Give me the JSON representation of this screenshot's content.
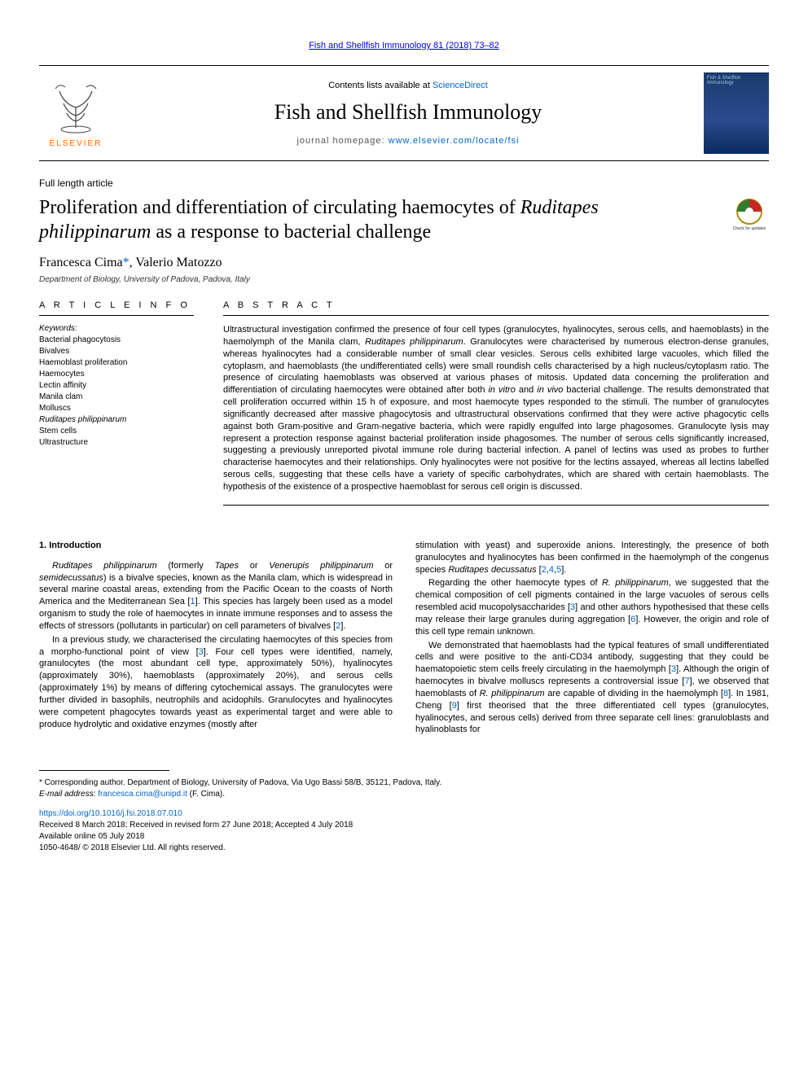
{
  "top_link": "Fish and Shellfish Immunology 81 (2018) 73–82",
  "header": {
    "contents_prefix": "Contents lists available at ",
    "contents_link": "ScienceDirect",
    "journal_title": "Fish and Shellfish Immunology",
    "homepage_prefix": "journal homepage: ",
    "homepage_link": "www.elsevier.com/locate/fsi",
    "elsevier_label": "ELSEVIER",
    "cover_text": "Fish & Shellfish Immunology"
  },
  "article": {
    "type": "Full length article",
    "title_prefix": "Proliferation and differentiation of circulating haemocytes of ",
    "title_species": "Ruditapes philippinarum",
    "title_suffix": " as a response to bacterial challenge",
    "authors_plain": "Francesca Cima",
    "authors_marker": "*",
    "authors_rest": ", Valerio Matozzo",
    "affiliation": "Department of Biology, University of Padova, Padova, Italy",
    "check_label": "Check for updates"
  },
  "info": {
    "heading": "A R T I C L E  I N F O",
    "keywords_label": "Keywords:",
    "keywords": [
      "Bacterial phagocytosis",
      "Bivalves",
      "Haemoblast proliferation",
      "Haemocytes",
      "Lectin affinity",
      "Manila clam",
      "Molluscs",
      "Ruditapes philippinarum",
      "Stem cells",
      "Ultrastructure"
    ],
    "keywords_italic_idx": 7
  },
  "abstract": {
    "heading": "A B S T R A C T",
    "text_parts": [
      "Ultrastructural investigation confirmed the presence of four cell types (granulocytes, hyalinocytes, serous cells, and haemoblasts) in the haemolymph of the Manila clam, ",
      "Ruditapes philippinarum",
      ". Granulocytes were characterised by numerous electron-dense granules, whereas hyalinocytes had a considerable number of small clear vesicles. Serous cells exhibited large vacuoles, which filled the cytoplasm, and haemoblasts (the undifferentiated cells) were small roundish cells characterised by a high nucleus/cytoplasm ratio. The presence of circulating haemoblasts was observed at various phases of mitosis. Updated data concerning the proliferation and differentiation of circulating haemocytes were obtained after both ",
      "in vitro",
      " and ",
      "in vivo",
      " bacterial challenge. The results demonstrated that cell proliferation occurred within 15 h of exposure, and most haemocyte types responded to the stimuli. The number of granulocytes significantly decreased after massive phagocytosis and ultrastructural observations confirmed that they were active phagocytic cells against both Gram-positive and Gram-negative bacteria, which were rapidly engulfed into large phagosomes. Granulocyte lysis may represent a protection response against bacterial proliferation inside phagosomes. The number of serous cells significantly increased, suggesting a previously unreported pivotal immune role during bacterial infection. A panel of lectins was used as probes to further characterise haemocytes and their relationships. Only hyalinocytes were not positive for the lectins assayed, whereas all lectins labelled serous cells, suggesting that these cells have a variety of specific carbohydrates, which are shared with certain haemoblasts. The hypothesis of the existence of a prospective haemoblast for serous cell origin is discussed."
    ]
  },
  "body": {
    "section_heading": "1. Introduction",
    "left_paras": [
      {
        "runs": [
          {
            "t": "Ruditapes philippinarum",
            "i": true
          },
          {
            "t": " (formerly ",
            "i": false
          },
          {
            "t": "Tapes",
            "i": true
          },
          {
            "t": " or ",
            "i": false
          },
          {
            "t": "Venerupis philippinarum",
            "i": true
          },
          {
            "t": " or ",
            "i": false
          },
          {
            "t": "semidecussatus",
            "i": true
          },
          {
            "t": ") is a bivalve species, known as the Manila clam, which is widespread in several marine coastal areas, extending from the Pacific Ocean to the coasts of North America and the Mediterranean Sea [",
            "i": false
          },
          {
            "t": "1",
            "ref": true
          },
          {
            "t": "]. This species has largely been used as a model organism to study the role of haemocytes in innate immune responses and to assess the effects of stressors (pollutants in particular) on cell parameters of bivalves [",
            "i": false
          },
          {
            "t": "2",
            "ref": true
          },
          {
            "t": "].",
            "i": false
          }
        ]
      },
      {
        "runs": [
          {
            "t": "In a previous study, we characterised the circulating haemocytes of this species from a morpho-functional point of view [",
            "i": false
          },
          {
            "t": "3",
            "ref": true
          },
          {
            "t": "]. Four cell types were identified, namely, granulocytes (the most abundant cell type, approximately 50%), hyalinocytes (approximately 30%), haemoblasts (approximately 20%), and serous cells (approximately 1%) by means of differing cytochemical assays. The granulocytes were further divided in basophils, neutrophils and acidophils. Granulocytes and hyalinocytes were competent phagocytes towards yeast as experimental target and were able to produce hydrolytic and oxidative enzymes (mostly after",
            "i": false
          }
        ]
      }
    ],
    "right_paras": [
      {
        "noindent": true,
        "runs": [
          {
            "t": "stimulation with yeast) and superoxide anions. Interestingly, the presence of both granulocytes and hyalinocytes has been confirmed in the haemolymph of the congenus species ",
            "i": false
          },
          {
            "t": "Ruditapes decussatus",
            "i": true
          },
          {
            "t": " [",
            "i": false
          },
          {
            "t": "2",
            "ref": true
          },
          {
            "t": ",",
            "i": false
          },
          {
            "t": "4",
            "ref": true
          },
          {
            "t": ",",
            "i": false
          },
          {
            "t": "5",
            "ref": true
          },
          {
            "t": "].",
            "i": false
          }
        ]
      },
      {
        "runs": [
          {
            "t": "Regarding the other haemocyte types of ",
            "i": false
          },
          {
            "t": "R. philippinarum",
            "i": true
          },
          {
            "t": ", we suggested that the chemical composition of cell pigments contained in the large vacuoles of serous cells resembled acid mucopolysaccharides [",
            "i": false
          },
          {
            "t": "3",
            "ref": true
          },
          {
            "t": "] and other authors hypothesised that these cells may release their large granules during aggregation [",
            "i": false
          },
          {
            "t": "6",
            "ref": true
          },
          {
            "t": "]. However, the origin and role of this cell type remain unknown.",
            "i": false
          }
        ]
      },
      {
        "runs": [
          {
            "t": "We demonstrated that haemoblasts had the typical features of small undifferentiated cells and were positive to the anti-CD34 antibody, suggesting that they could be haematopoietic stem cells freely circulating in the haemolymph [",
            "i": false
          },
          {
            "t": "3",
            "ref": true
          },
          {
            "t": "]. Although the origin of haemocytes in bivalve molluscs represents a controversial issue [",
            "i": false
          },
          {
            "t": "7",
            "ref": true
          },
          {
            "t": "], we observed that haemoblasts of ",
            "i": false
          },
          {
            "t": "R. philippinarum",
            "i": true
          },
          {
            "t": " are capable of dividing in the haemolymph [",
            "i": false
          },
          {
            "t": "8",
            "ref": true
          },
          {
            "t": "]. In 1981, Cheng [",
            "i": false
          },
          {
            "t": "9",
            "ref": true
          },
          {
            "t": "] first theorised that the three differentiated cell types (granulocytes, hyalinocytes, and serous cells) derived from three separate cell lines: granuloblasts and hyalinoblasts for",
            "i": false
          }
        ]
      }
    ]
  },
  "footer": {
    "corr_marker": "*",
    "corr_text": " Corresponding author. Department of Biology, University of Padova, Via Ugo Bassi 58/B, 35121, Padova, Italy.",
    "email_label": "E-mail address: ",
    "email": "francesca.cima@unipd.it",
    "email_suffix": " (F. Cima).",
    "doi": "https://doi.org/10.1016/j.fsi.2018.07.010",
    "received": "Received 8 March 2018; Received in revised form 27 June 2018; Accepted 4 July 2018",
    "available": "Available online 05 July 2018",
    "copyright": "1050-4648/ © 2018 Elsevier Ltd. All rights reserved."
  },
  "colors": {
    "link": "#0066cc",
    "elsevier_orange": "#ff6600",
    "cover_bg_top": "#1a3a6e",
    "cover_bg_bot": "#0a2a5e",
    "badge_ring": "#b58a00",
    "badge_red": "#c62828",
    "badge_green": "#2e7d32"
  }
}
